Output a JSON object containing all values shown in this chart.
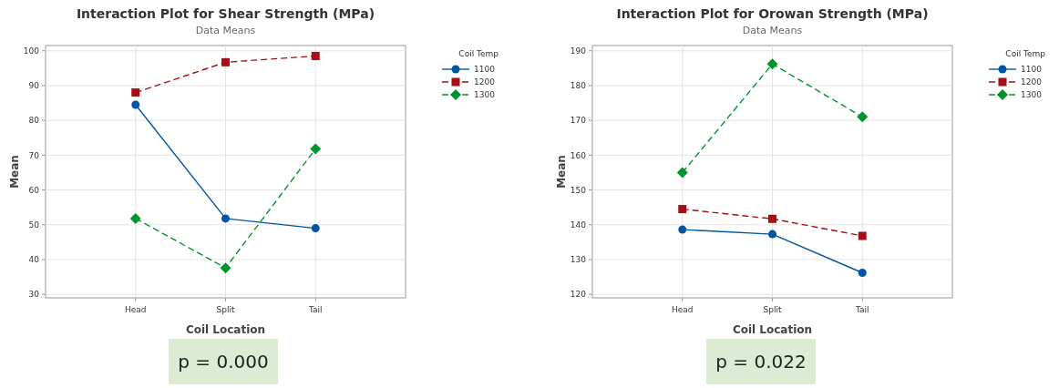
{
  "chart_data": [
    {
      "type": "line",
      "title": "Interaction Plot for Shear Strength (MPa)",
      "subtitle": "Data Means",
      "xlabel": "Coil Location",
      "ylabel": "Mean",
      "legend_title": "Coil Temp",
      "categories": [
        "Head",
        "Split",
        "Tail"
      ],
      "series": [
        {
          "name": "1100",
          "color": "#0054a6",
          "values": [
            84.5,
            51.8,
            49
          ],
          "marker": "circle",
          "line_style": "solid"
        },
        {
          "name": "1200",
          "color": "#a50f15",
          "values": [
            88,
            96.7,
            98.5
          ],
          "marker": "square",
          "line_style": "dashed"
        },
        {
          "name": "1300",
          "color": "#00942f",
          "values": [
            51.8,
            37.6,
            71.8
          ],
          "marker": "diamond",
          "line_style": "dashed"
        }
      ],
      "ylim": [
        29,
        101.5
      ],
      "yticks": [
        30,
        40,
        50,
        60,
        70,
        80,
        90,
        100
      ],
      "grid": true,
      "legend": "right",
      "annotations": [
        "p = 0.000"
      ]
    },
    {
      "type": "line",
      "title": "Interaction Plot for Orowan Strength (MPa)",
      "subtitle": "Data Means",
      "xlabel": "Coil Location",
      "ylabel": "Mean",
      "legend_title": "Coil Temp",
      "categories": [
        "Head",
        "Split",
        "Tail"
      ],
      "series": [
        {
          "name": "1100",
          "color": "#0054a6",
          "values": [
            138.6,
            137.3,
            126.2
          ],
          "marker": "circle",
          "line_style": "solid"
        },
        {
          "name": "1200",
          "color": "#a50f15",
          "values": [
            144.5,
            141.7,
            136.8
          ],
          "marker": "square",
          "line_style": "dashed"
        },
        {
          "name": "1300",
          "color": "#00942f",
          "values": [
            155,
            186.2,
            171
          ],
          "marker": "diamond",
          "line_style": "dashed"
        }
      ],
      "ylim": [
        119,
        191.5
      ],
      "yticks": [
        120,
        130,
        140,
        150,
        160,
        170,
        180,
        190
      ],
      "grid": true,
      "legend": "right",
      "annotations": [
        "p = 0.022"
      ]
    }
  ]
}
